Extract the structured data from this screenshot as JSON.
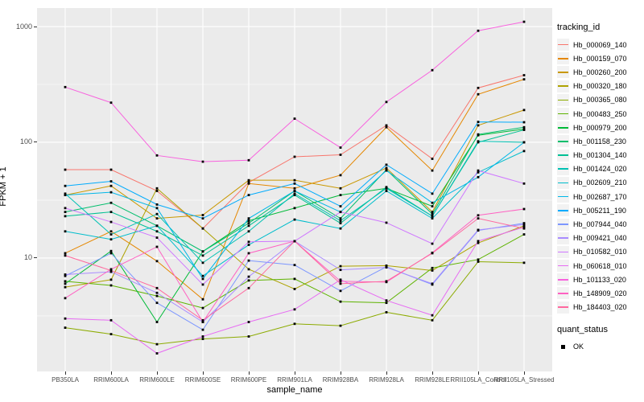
{
  "figure": {
    "ylabel": "FPKM + 1",
    "xlabel": "sample_name",
    "legend_series_title": "tracking_id",
    "legend_status_title": "quant_status",
    "legend_status_ok_label": "OK"
  },
  "colors": {
    "panel_bg": "#EBEBEB",
    "grid": "#FFFFFF",
    "tick_text": "#4D4D4D",
    "axis_text": "#000000",
    "point": "#000000"
  },
  "chart_data": {
    "type": "line",
    "title": "",
    "xlabel": "sample_name",
    "ylabel": "FPKM + 1",
    "x_type": "categorical",
    "y_scale": "log10",
    "grid": "white major and minor gridlines on gray panel",
    "legend_position": "right",
    "legend_title": "tracking_id",
    "status_legend": {
      "title": "quant_status",
      "items": [
        {
          "label": "OK",
          "symbol": "black-square-point"
        }
      ]
    },
    "y_ticks": [
      {
        "value": 10,
        "label": "10"
      },
      {
        "value": 100,
        "label": "100"
      },
      {
        "value": 1000,
        "label": "1000"
      }
    ],
    "y_minor_values": [
      3.162,
      31.62,
      316.2
    ],
    "ylim_log10": [
      0.02,
      3.16
    ],
    "categories": [
      "PB350LA",
      "RRIM600LA",
      "RRIM600LE",
      "RRIM600SE",
      "RRIM600PE",
      "RRIM901LA",
      "RRIM928BA",
      "RRIM928LA",
      "RRIM928LE",
      "RRII105LA_Control",
      "RRII105LA_Stressed"
    ],
    "series": [
      {
        "name": "Hb_000069_140",
        "color": "#F8766D",
        "values": [
          58,
          58,
          38,
          18,
          45,
          75,
          78,
          140,
          72,
          295,
          380
        ]
      },
      {
        "name": "Hb_000159_070",
        "color": "#E58700",
        "values": [
          11,
          17,
          9.4,
          4.4,
          44,
          40,
          52,
          135,
          57,
          260,
          350
        ]
      },
      {
        "name": "Hb_000260_200",
        "color": "#C99800",
        "values": [
          35,
          42,
          22,
          23.5,
          47,
          47,
          40,
          60,
          25,
          140,
          190
        ]
      },
      {
        "name": "Hb_000320_180",
        "color": "#AEA200",
        "values": [
          5.6,
          6.5,
          40,
          18,
          8,
          5.4,
          8.5,
          8.6,
          7.8,
          13.5,
          19
        ]
      },
      {
        "name": "Hb_000365_080",
        "color": "#8CAB00",
        "values": [
          2.5,
          2.2,
          1.8,
          2.0,
          2.1,
          2.7,
          2.6,
          3.4,
          2.9,
          9.3,
          9.1
        ]
      },
      {
        "name": "Hb_000483_250",
        "color": "#5EB300",
        "values": [
          6.3,
          5.8,
          4.7,
          3.7,
          6.4,
          6.6,
          4.2,
          4.1,
          8.2,
          9.7,
          16
        ]
      },
      {
        "name": "Hb_000979_200",
        "color": "#00BA38",
        "values": [
          6.0,
          11.5,
          2.8,
          11.4,
          21,
          27,
          35,
          40,
          28,
          115,
          130
        ]
      },
      {
        "name": "Hb_001158_230",
        "color": "#00BE6C",
        "values": [
          25,
          30,
          19,
          11.4,
          20,
          38,
          22,
          58,
          24,
          117,
          135
        ]
      },
      {
        "name": "Hb_001304_140",
        "color": "#00C094",
        "values": [
          23,
          25,
          17,
          10.5,
          19,
          35,
          20,
          41,
          23,
          100,
          128
        ]
      },
      {
        "name": "Hb_001424_020",
        "color": "#00C1B3",
        "values": [
          36,
          16,
          24,
          9.1,
          17,
          36,
          21,
          40,
          23,
          102,
          100
        ]
      },
      {
        "name": "Hb_002609_210",
        "color": "#00BDCC",
        "values": [
          17,
          14.5,
          19,
          7.0,
          13,
          21.5,
          18,
          38,
          22,
          55,
          84
        ]
      },
      {
        "name": "Hb_002687_170",
        "color": "#00B7E8",
        "values": [
          35,
          37,
          27,
          6.6,
          22,
          38,
          25,
          57,
          30,
          50,
          100
        ]
      },
      {
        "name": "Hb_005211_190",
        "color": "#00ABFD",
        "values": [
          42,
          46,
          29,
          22,
          35,
          44,
          28,
          64,
          36,
          150,
          149
        ]
      },
      {
        "name": "Hb_007944_040",
        "color": "#7C96FF",
        "values": [
          7.0,
          11,
          4.1,
          2.4,
          9.5,
          8.7,
          5.2,
          8.4,
          5.9,
          17.3,
          20
        ]
      },
      {
        "name": "Hb_009421_040",
        "color": "#A98CFF",
        "values": [
          7.2,
          7.6,
          5.0,
          2.8,
          6.9,
          14,
          7.9,
          8.3,
          6.0,
          17.5,
          19.5
        ]
      },
      {
        "name": "Hb_010582_010",
        "color": "#CF78FF",
        "values": [
          27,
          20.5,
          15,
          5.9,
          13.8,
          14,
          25,
          20.2,
          13.3,
          57,
          44
        ]
      },
      {
        "name": "Hb_060618_010",
        "color": "#E76BF3",
        "values": [
          3.0,
          2.9,
          1.5,
          2.1,
          2.8,
          3.6,
          6.5,
          4.3,
          3.2,
          14,
          18.5
        ]
      },
      {
        "name": "Hb_101133_020",
        "color": "#F862DE",
        "values": [
          300,
          220,
          77,
          68,
          70,
          160,
          90,
          223,
          420,
          920,
          1100
        ]
      },
      {
        "name": "Hb_148909_020",
        "color": "#FF61C2",
        "values": [
          4.5,
          8.0,
          12.5,
          2.8,
          11,
          14,
          6.3,
          6.2,
          11.1,
          23.4,
          26.5
        ]
      },
      {
        "name": "Hb_184403_020",
        "color": "#FF689E",
        "values": [
          10.5,
          7.8,
          5.5,
          2.9,
          5.5,
          14,
          6.0,
          6.3,
          11,
          22,
          18
        ]
      }
    ]
  }
}
